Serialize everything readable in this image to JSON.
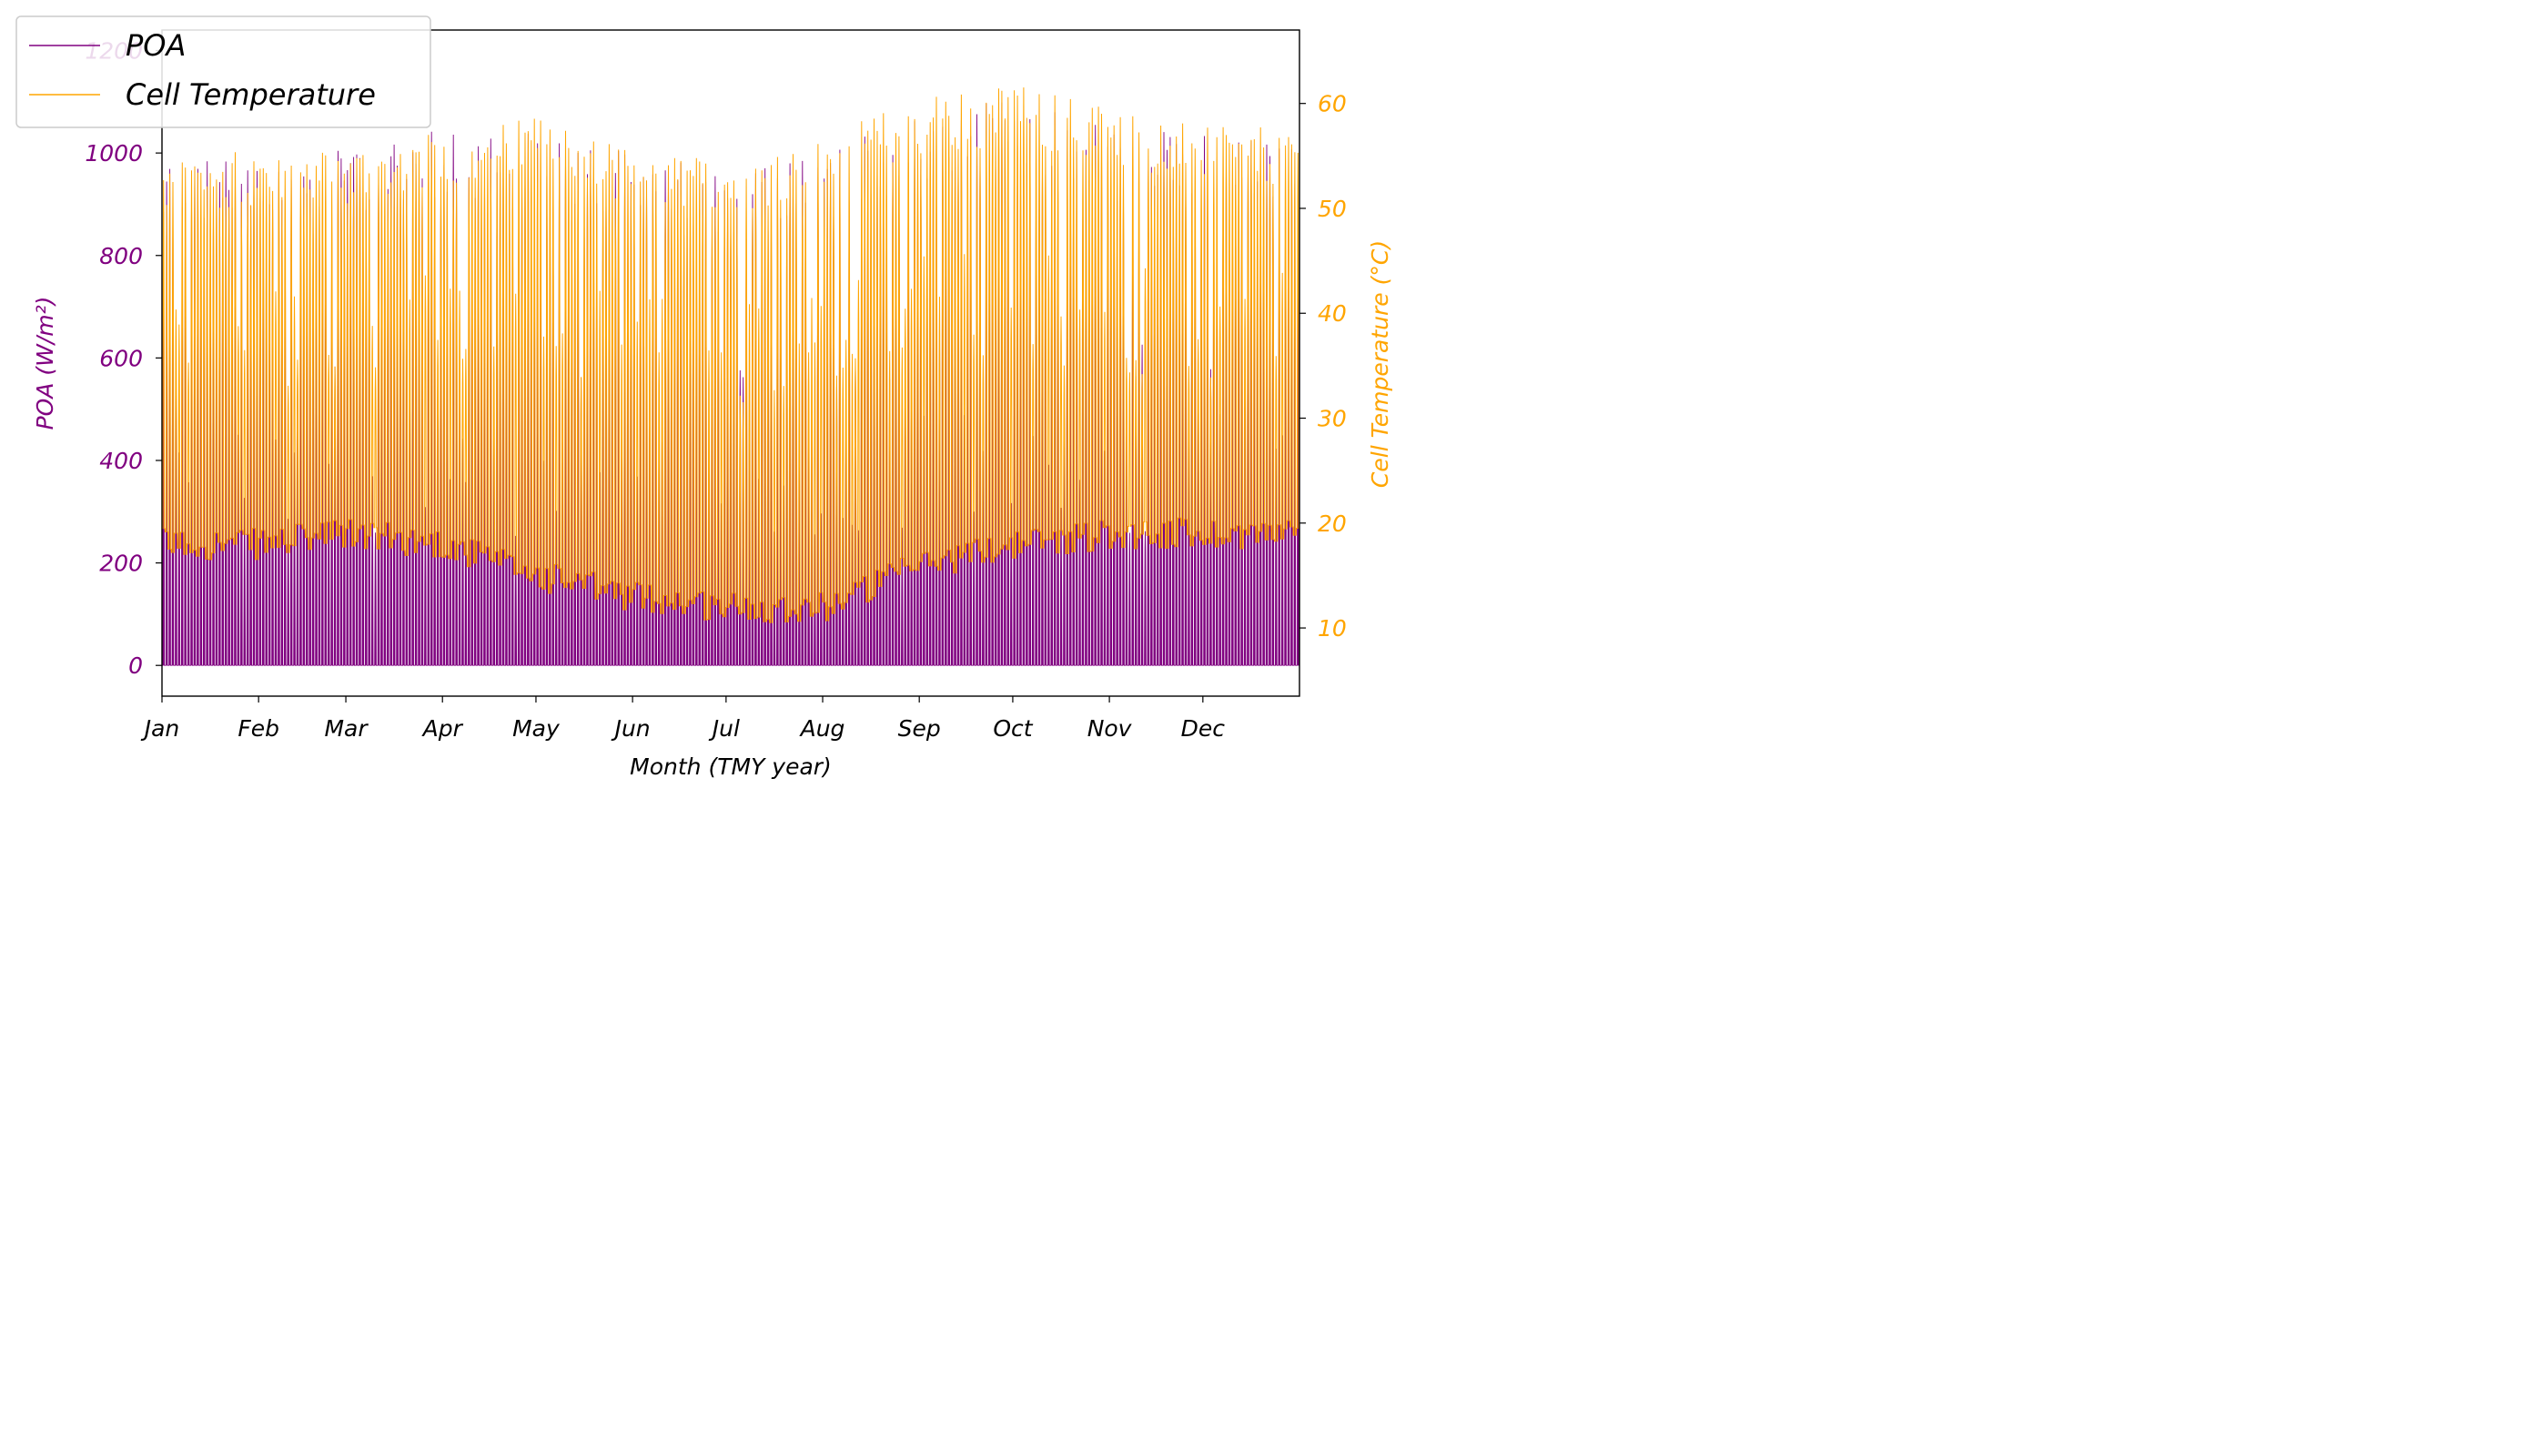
{
  "chart_data": {
    "type": "line",
    "xlabel": "Month (TMY year)",
    "x_tick_labels": [
      "Jan",
      "Feb",
      "Mar",
      "Apr",
      "May",
      "Jun",
      "Jul",
      "Aug",
      "Sep",
      "Oct",
      "Nov",
      "Dec"
    ],
    "x_tick_day_of_year": [
      1,
      32,
      60,
      91,
      121,
      152,
      182,
      213,
      244,
      274,
      305,
      335
    ],
    "x_range_day_of_year": [
      1,
      366
    ],
    "left_axis": {
      "label": "POA (W/m²)",
      "color": "#800080",
      "ylim": [
        -60,
        1240
      ],
      "ticks": [
        0,
        200,
        400,
        600,
        800,
        1000,
        1200
      ],
      "tick_labels": [
        "0",
        "200",
        "400",
        "600",
        "800",
        "1000",
        "1200"
      ]
    },
    "right_axis": {
      "label": "Cell Temperature (°C)",
      "color": "#FFA500",
      "ylim": [
        3.5,
        67
      ],
      "ticks": [
        10,
        20,
        30,
        40,
        50,
        60
      ],
      "tick_labels": [
        "10",
        "20",
        "30",
        "40",
        "50",
        "60"
      ]
    },
    "legend": {
      "placement": "top-left",
      "entries": [
        "POA",
        "Cell Temperature"
      ]
    },
    "grid": false,
    "series": [
      {
        "name": "POA",
        "axis": "left",
        "color": "#800080",
        "resolution": "hourly (one daily peak per day, zero at night)",
        "monthly_typical_daily_peak_wm2": [
          950,
          940,
          960,
          1000,
          1000,
          950,
          930,
          960,
          1030,
          1060,
          1000,
          990
        ],
        "monthly_max_peak_wm2": [
          1070,
          1040,
          1050,
          1190,
          1080,
          1000,
          980,
          1050,
          1120,
          1180,
          1150,
          1100
        ]
      },
      {
        "name": "Cell Temperature",
        "axis": "right",
        "color": "#FFA500",
        "resolution": "hourly",
        "monthly_typical_daily_max_c": [
          52,
          53,
          53,
          55,
          56,
          53,
          52,
          54,
          58,
          59,
          57,
          55
        ],
        "monthly_typical_night_min_c": [
          18,
          18,
          19,
          18,
          15,
          13,
          12,
          12,
          16,
          18,
          19,
          19
        ]
      }
    ]
  }
}
